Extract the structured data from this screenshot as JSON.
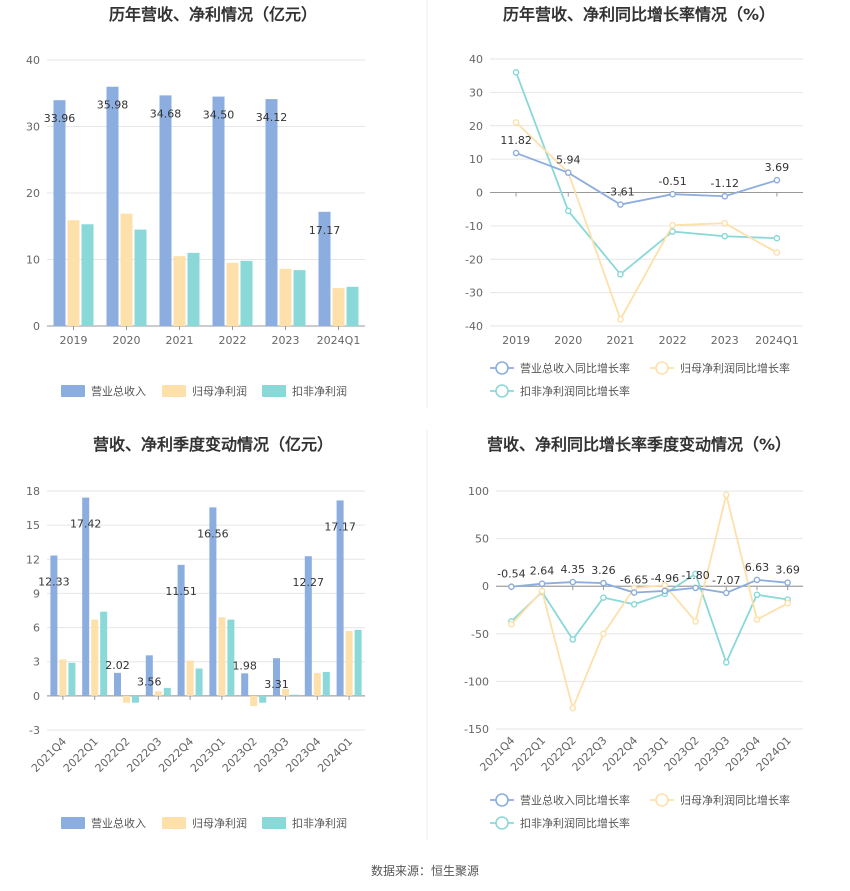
{
  "footer": {
    "source": "数据来源：恒生聚源"
  },
  "colors": {
    "revenue": "#8caddf",
    "net_profit": "#fde0aa",
    "deducted_profit": "#8ad8d8",
    "revenue_line": "#8caddf",
    "net_line": "#fde0aa",
    "deducted_line": "#8ad8d8"
  },
  "chart_data": [
    {
      "type": "bar",
      "title": "历年营收、净利情况（亿元）",
      "categories": [
        "2019",
        "2020",
        "2021",
        "2022",
        "2023",
        "2024Q1"
      ],
      "yticks": [
        "0",
        "10",
        "20",
        "30",
        "40"
      ],
      "ylim": [
        0,
        40
      ],
      "series": [
        {
          "name": "营业总收入",
          "values": [
            33.96,
            35.98,
            34.68,
            34.5,
            34.12,
            17.17
          ],
          "labels": [
            "33.96",
            "35.98",
            "34.68",
            "34.50",
            "34.12",
            "17.17"
          ]
        },
        {
          "name": "归母净利润",
          "values": [
            15.9,
            16.9,
            10.5,
            9.5,
            8.6,
            5.7
          ]
        },
        {
          "name": "扣非净利润",
          "values": [
            15.3,
            14.5,
            11.0,
            9.8,
            8.4,
            5.9
          ]
        }
      ],
      "legend": "bottom"
    },
    {
      "type": "line",
      "title": "历年营收、净利同比增长率情况（%）",
      "categories": [
        "2019",
        "2020",
        "2021",
        "2022",
        "2023",
        "2024Q1"
      ],
      "yticks": [
        "-40",
        "-30",
        "-20",
        "-10",
        "0",
        "10",
        "20",
        "30",
        "40"
      ],
      "ylim": [
        -40,
        40
      ],
      "series": [
        {
          "name": "营业总收入同比增长率",
          "values": [
            11.82,
            5.94,
            -3.61,
            -0.51,
            -1.12,
            3.69
          ],
          "labels": [
            "11.82",
            "5.94",
            "-3.61",
            "-0.51",
            "-1.12",
            "3.69"
          ]
        },
        {
          "name": "归母净利润同比增长率",
          "values": [
            21,
            6,
            -38,
            -9.8,
            -9.2,
            -18
          ]
        },
        {
          "name": "扣非净利润同比增长率",
          "values": [
            36,
            -5.5,
            -24.5,
            -11.7,
            -13.1,
            -13.7
          ]
        }
      ],
      "legend": "bottom"
    },
    {
      "type": "bar",
      "title": "营收、净利季度变动情况（亿元）",
      "categories": [
        "2021Q4",
        "2022Q1",
        "2022Q2",
        "2022Q3",
        "2022Q4",
        "2023Q1",
        "2023Q2",
        "2023Q3",
        "2023Q4",
        "2024Q1"
      ],
      "yticks": [
        "-3",
        "0",
        "3",
        "6",
        "9",
        "12",
        "15",
        "18"
      ],
      "ylim": [
        -3,
        18
      ],
      "series": [
        {
          "name": "营业总收入",
          "values": [
            12.33,
            17.42,
            2.02,
            3.56,
            11.51,
            16.56,
            1.98,
            3.31,
            12.27,
            17.17
          ],
          "labels": [
            "12.33",
            "17.42",
            "2.02",
            "3.56",
            "11.51",
            "16.56",
            "1.98",
            "3.31",
            "12.27",
            "17.17"
          ]
        },
        {
          "name": "归母净利润",
          "values": [
            3.2,
            6.7,
            -0.6,
            0.4,
            3.1,
            6.9,
            -0.9,
            0.6,
            2.0,
            5.7
          ]
        },
        {
          "name": "扣非净利润",
          "values": [
            2.9,
            7.4,
            -0.6,
            0.7,
            2.4,
            6.7,
            -0.6,
            0.1,
            2.1,
            5.8
          ]
        }
      ],
      "legend": "bottom"
    },
    {
      "type": "line",
      "title": "营收、净利同比增长率季度变动情况（%）",
      "categories": [
        "2021Q4",
        "2022Q1",
        "2022Q2",
        "2022Q3",
        "2022Q4",
        "2023Q1",
        "2023Q2",
        "2023Q3",
        "2023Q4",
        "2024Q1"
      ],
      "yticks": [
        "-150",
        "-100",
        "-50",
        "0",
        "50",
        "100"
      ],
      "ylim": [
        -150,
        100
      ],
      "series": [
        {
          "name": "营业总收入同比增长率",
          "values": [
            -0.54,
            2.64,
            4.35,
            3.26,
            -6.65,
            -4.96,
            -1.8,
            -7.07,
            6.63,
            3.69
          ],
          "labels": [
            "-0.54",
            "2.64",
            "4.35",
            "3.26",
            "-6.65",
            "-4.96",
            "-1.80",
            "-7.07",
            "6.63",
            "3.69"
          ]
        },
        {
          "name": "归母净利润同比增长率",
          "values": [
            -40,
            -5,
            -128,
            -50,
            -2,
            1,
            -37,
            96,
            -35,
            -18
          ]
        },
        {
          "name": "扣非净利润同比增长率",
          "values": [
            -37,
            -6,
            -56,
            -12,
            -19,
            -8,
            13,
            -80,
            -9,
            -14
          ]
        }
      ],
      "legend": "bottom"
    }
  ]
}
